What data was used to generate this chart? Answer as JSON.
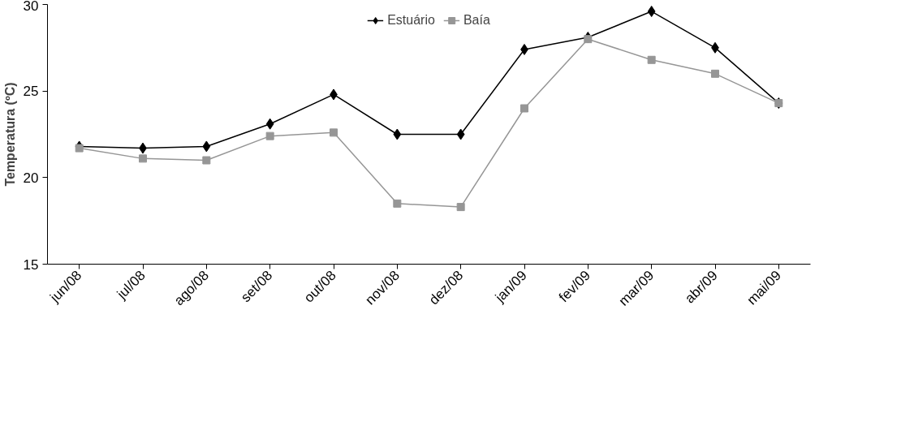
{
  "chart_data": {
    "type": "line",
    "ylabel": "Temperatura (ºC)",
    "categories": [
      "jun/08",
      "jul/08",
      "ago/08",
      "set/08",
      "out/08",
      "nov/08",
      "dez/08",
      "jan/09",
      "fev/09",
      "mar/09",
      "abr/09",
      "mai/09"
    ],
    "series": [
      {
        "name": "Estuário",
        "color": "#000000",
        "marker": "diamond",
        "values": [
          21.8,
          21.7,
          21.8,
          23.1,
          24.8,
          22.5,
          22.5,
          27.4,
          28.1,
          29.6,
          27.5,
          24.3
        ]
      },
      {
        "name": "Baía",
        "color": "#969696",
        "marker": "square",
        "values": [
          21.7,
          21.1,
          21.0,
          22.4,
          22.6,
          18.5,
          18.3,
          24.0,
          28.0,
          26.8,
          26.0,
          24.3
        ]
      }
    ],
    "ylim": [
      15,
      30
    ],
    "yticks": [
      15,
      20,
      25,
      30
    ],
    "grid": false,
    "legend": "top",
    "line_style": "solid"
  }
}
